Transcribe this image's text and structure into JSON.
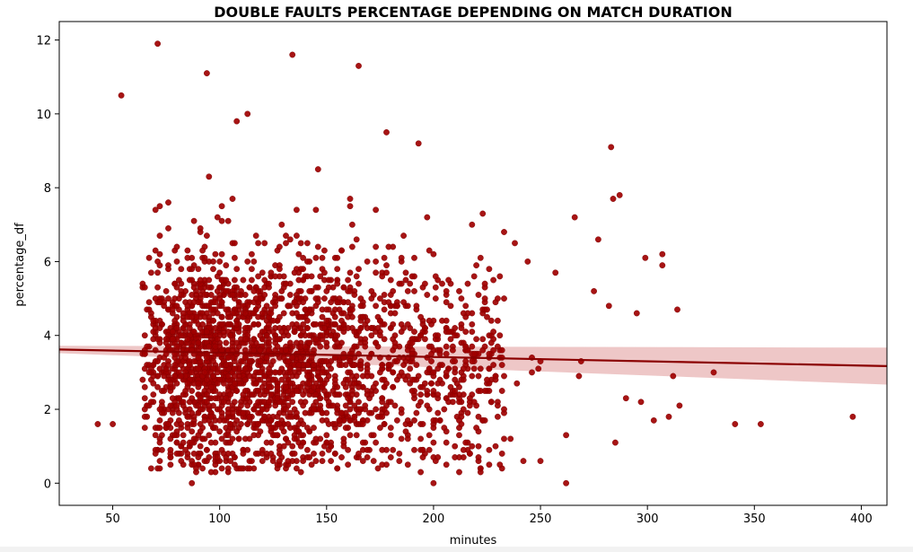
{
  "chart_data": {
    "type": "scatter",
    "title": "DOUBLE FAULTS PERCENTAGE DEPENDING ON MATCH DURATION",
    "xlabel": "minutes",
    "ylabel": "percentage_df",
    "xlim": [
      25,
      412
    ],
    "ylim": [
      -0.6,
      12.5
    ],
    "xticks": [
      50,
      100,
      150,
      200,
      250,
      300,
      350,
      400
    ],
    "yticks": [
      0,
      2,
      4,
      6,
      8,
      10,
      12
    ],
    "grid": false,
    "legend": "none",
    "point_color": "#a00000",
    "regression_line": {
      "color": "#8b0000",
      "ci_color": "#e8b4b4",
      "x": [
        25,
        412
      ],
      "y": [
        3.62,
        3.17
      ],
      "ci_halfwidth": [
        0.1,
        0.5
      ]
    },
    "cloud": {
      "n_points": 2600,
      "x_center": 140,
      "x_range": [
        64,
        300
      ],
      "y_mean": 3.3,
      "y_sd": 1.5,
      "y_range": [
        0.3,
        9.3
      ],
      "x_grid": 1,
      "y_grid": 0.1,
      "seed": 7
    },
    "outliers": [
      {
        "x": 43,
        "y": 1.6
      },
      {
        "x": 50,
        "y": 1.6
      },
      {
        "x": 54,
        "y": 10.5
      },
      {
        "x": 71,
        "y": 11.9
      },
      {
        "x": 94,
        "y": 11.1
      },
      {
        "x": 134,
        "y": 11.6
      },
      {
        "x": 165,
        "y": 11.3
      },
      {
        "x": 108,
        "y": 9.8
      },
      {
        "x": 113,
        "y": 10.0
      },
      {
        "x": 178,
        "y": 9.5
      },
      {
        "x": 193,
        "y": 9.2
      },
      {
        "x": 283,
        "y": 9.1
      },
      {
        "x": 287,
        "y": 7.8
      },
      {
        "x": 284,
        "y": 7.7
      },
      {
        "x": 266,
        "y": 7.2
      },
      {
        "x": 277,
        "y": 6.6
      },
      {
        "x": 299,
        "y": 6.1
      },
      {
        "x": 307,
        "y": 6.2
      },
      {
        "x": 307,
        "y": 5.9
      },
      {
        "x": 314,
        "y": 4.7
      },
      {
        "x": 312,
        "y": 2.9
      },
      {
        "x": 315,
        "y": 2.1
      },
      {
        "x": 310,
        "y": 1.8
      },
      {
        "x": 303,
        "y": 1.7
      },
      {
        "x": 331,
        "y": 3.0
      },
      {
        "x": 341,
        "y": 1.6
      },
      {
        "x": 353,
        "y": 1.6
      },
      {
        "x": 396,
        "y": 1.8
      },
      {
        "x": 285,
        "y": 1.1
      },
      {
        "x": 262,
        "y": 0.0
      },
      {
        "x": 87,
        "y": 0.0
      },
      {
        "x": 200,
        "y": 0.0
      },
      {
        "x": 231,
        "y": 0.5
      },
      {
        "x": 250,
        "y": 0.6
      },
      {
        "x": 242,
        "y": 0.6
      },
      {
        "x": 297,
        "y": 2.2
      },
      {
        "x": 290,
        "y": 2.3
      },
      {
        "x": 295,
        "y": 4.6
      },
      {
        "x": 282,
        "y": 4.8
      },
      {
        "x": 269,
        "y": 3.3
      }
    ]
  }
}
